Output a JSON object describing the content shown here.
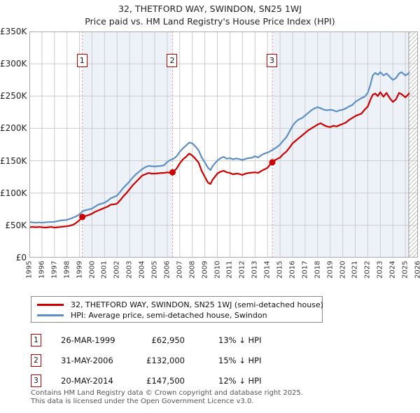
{
  "page": {
    "title": "32, THETFORD WAY, SWINDON, SN25 1WJ",
    "subtitle": "Price paid vs. HM Land Registry's House Price Index (HPI)"
  },
  "colors": {
    "accent": "#cc0000",
    "hpi_blue": "#5e8fc4",
    "band": "#edf2f9",
    "grid": "#cccccc",
    "dashed": "#e38d8d",
    "border": "#aaaaaa",
    "hatch": "#bbbbbb"
  },
  "chart_data": {
    "type": "line",
    "x_range": [
      1995,
      2026
    ],
    "y_range": [
      0,
      350000
    ],
    "grid": true,
    "legend_position": "bottom",
    "x_ticks": [
      1995,
      1996,
      1997,
      1998,
      1999,
      2000,
      2001,
      2002,
      2003,
      2004,
      2005,
      2006,
      2007,
      2008,
      2009,
      2010,
      2011,
      2012,
      2013,
      2014,
      2015,
      2016,
      2017,
      2018,
      2019,
      2020,
      2021,
      2022,
      2023,
      2024,
      2025,
      2026
    ],
    "y_ticks": [
      {
        "v": 0,
        "label": "£0"
      },
      {
        "v": 50000,
        "label": "£50K"
      },
      {
        "v": 100000,
        "label": "£100K"
      },
      {
        "v": 150000,
        "label": "£150K"
      },
      {
        "v": 200000,
        "label": "£200K"
      },
      {
        "v": 250000,
        "label": "£250K"
      },
      {
        "v": 300000,
        "label": "£300K"
      },
      {
        "v": 350000,
        "label": "£350K"
      }
    ],
    "x": [
      1995,
      1995.25,
      1995.5,
      1995.75,
      1996,
      1996.25,
      1996.5,
      1996.75,
      1997,
      1997.25,
      1997.5,
      1997.75,
      1998,
      1998.25,
      1998.5,
      1998.75,
      1999,
      1999.25,
      1999.5,
      1999.75,
      2000,
      2000.25,
      2000.5,
      2000.75,
      2001,
      2001.25,
      2001.5,
      2001.75,
      2002,
      2002.25,
      2002.5,
      2002.75,
      2003,
      2003.25,
      2003.5,
      2003.75,
      2004,
      2004.25,
      2004.5,
      2004.75,
      2005,
      2005.25,
      2005.5,
      2005.75,
      2006,
      2006.25,
      2006.5,
      2006.75,
      2007,
      2007.25,
      2007.5,
      2007.75,
      2008,
      2008.25,
      2008.5,
      2008.75,
      2009,
      2009.25,
      2009.45,
      2009.6,
      2009.8,
      2010,
      2010.25,
      2010.5,
      2010.75,
      2011,
      2011.25,
      2011.5,
      2011.75,
      2012,
      2012.25,
      2012.5,
      2012.75,
      2013,
      2013.25,
      2013.5,
      2013.75,
      2014,
      2014.25,
      2014.5,
      2014.75,
      2015,
      2015.25,
      2015.5,
      2015.75,
      2016,
      2016.25,
      2016.5,
      2016.75,
      2017,
      2017.25,
      2017.5,
      2017.75,
      2018,
      2018.25,
      2018.5,
      2018.75,
      2019,
      2019.25,
      2019.5,
      2019.75,
      2020,
      2020.25,
      2020.5,
      2020.75,
      2021,
      2021.25,
      2021.5,
      2021.75,
      2022,
      2022.2,
      2022.4,
      2022.6,
      2022.8,
      2023,
      2023.25,
      2023.5,
      2023.75,
      2024,
      2024.25,
      2024.5,
      2024.7,
      2025,
      2025.3
    ],
    "series": [
      {
        "name": "32, THETFORD WAY, SWINDON, SN25 1WJ (semi-detached house)",
        "color": "#cc0000",
        "data_name": "price-paid-line",
        "values": [
          47000,
          47500,
          47000,
          47500,
          47000,
          46500,
          47000,
          47500,
          46500,
          47000,
          47500,
          48000,
          48500,
          49500,
          51000,
          54000,
          58000,
          62950,
          64500,
          66000,
          68000,
          71000,
          73000,
          75000,
          77000,
          79000,
          82000,
          82500,
          83500,
          89000,
          95000,
          100000,
          106000,
          112000,
          117000,
          122000,
          127000,
          129000,
          131000,
          130000,
          130000,
          130500,
          131000,
          131000,
          132000,
          131000,
          133000,
          138000,
          146000,
          152000,
          156000,
          161000,
          158000,
          153000,
          147000,
          134000,
          125000,
          116000,
          114000,
          120000,
          125000,
          130000,
          133000,
          134500,
          132000,
          131000,
          129000,
          130000,
          129500,
          128000,
          130000,
          131000,
          131500,
          132000,
          131000,
          134000,
          136500,
          139000,
          145000,
          150000,
          152500,
          155000,
          160000,
          164000,
          170000,
          177000,
          181000,
          185000,
          189000,
          193000,
          197000,
          200000,
          203000,
          206000,
          208000,
          205000,
          203000,
          202000,
          204000,
          203000,
          205000,
          207000,
          209000,
          213000,
          216000,
          219000,
          221000,
          223000,
          229000,
          234000,
          244000,
          252000,
          254000,
          250000,
          256000,
          249000,
          255000,
          247000,
          241000,
          245000,
          255000,
          253000,
          248000,
          254000
        ]
      },
      {
        "name": "HPI: Average price, semi-detached house, Swindon",
        "color": "#5e8fc4",
        "data_name": "hpi-line",
        "values": [
          55000,
          54500,
          54000,
          54500,
          54000,
          54500,
          55000,
          55000,
          55500,
          56500,
          57500,
          58000,
          58500,
          60000,
          62000,
          64000,
          67000,
          72000,
          73500,
          74500,
          76000,
          79000,
          82000,
          83500,
          85000,
          88000,
          92000,
          94000,
          96000,
          102000,
          108000,
          113000,
          118000,
          124000,
          129000,
          133000,
          137000,
          140000,
          142000,
          141500,
          141000,
          141500,
          142000,
          143000,
          148000,
          151000,
          153000,
          157000,
          164000,
          169000,
          173500,
          178000,
          177000,
          172000,
          166000,
          155000,
          147500,
          139000,
          135500,
          141000,
          146000,
          150000,
          154000,
          156000,
          153000,
          154000,
          152000,
          153500,
          152500,
          151000,
          153000,
          154000,
          154500,
          157000,
          155000,
          158500,
          161000,
          162500,
          165000,
          168000,
          171000,
          175000,
          181000,
          186000,
          195000,
          204000,
          210000,
          214000,
          216000,
          220000,
          224000,
          228000,
          231000,
          233000,
          231000,
          229000,
          228000,
          229000,
          228000,
          226000,
          228000,
          229000,
          231000,
          234000,
          236000,
          241000,
          244000,
          247000,
          249000,
          255000,
          267000,
          282000,
          286000,
          283000,
          287000,
          282000,
          285000,
          280000,
          275000,
          278000,
          285000,
          287000,
          282000,
          286000
        ]
      }
    ],
    "sale_markers": [
      {
        "label": "1",
        "x": 1999.23,
        "price": 62950
      },
      {
        "label": "2",
        "x": 2006.42,
        "price": 132000
      },
      {
        "label": "3",
        "x": 2014.38,
        "price": 147500
      }
    ],
    "shaded_bands": [
      [
        1999.23,
        2006.42
      ],
      [
        2014.38,
        2025.27
      ]
    ],
    "hatch_region": [
      2025.27,
      2026
    ]
  },
  "legend": {
    "items": [
      {
        "label": "32, THETFORD WAY, SWINDON, SN25 1WJ (semi-detached house)",
        "color": "#cc0000"
      },
      {
        "label": "HPI: Average price, semi-detached house, Swindon",
        "color": "#5e8fc4"
      }
    ]
  },
  "transactions": [
    {
      "num": "1",
      "date": "26-MAR-1999",
      "price": "£62,950",
      "hpi": "13% ↓ HPI"
    },
    {
      "num": "2",
      "date": "31-MAY-2006",
      "price": "£132,000",
      "hpi": "15% ↓ HPI"
    },
    {
      "num": "3",
      "date": "20-MAY-2014",
      "price": "£147,500",
      "hpi": "12% ↓ HPI"
    }
  ],
  "footer": {
    "line1": "Contains HM Land Registry data © Crown copyright and database right 2025.",
    "line2": "This data is licensed under the Open Government Licence v3.0."
  }
}
